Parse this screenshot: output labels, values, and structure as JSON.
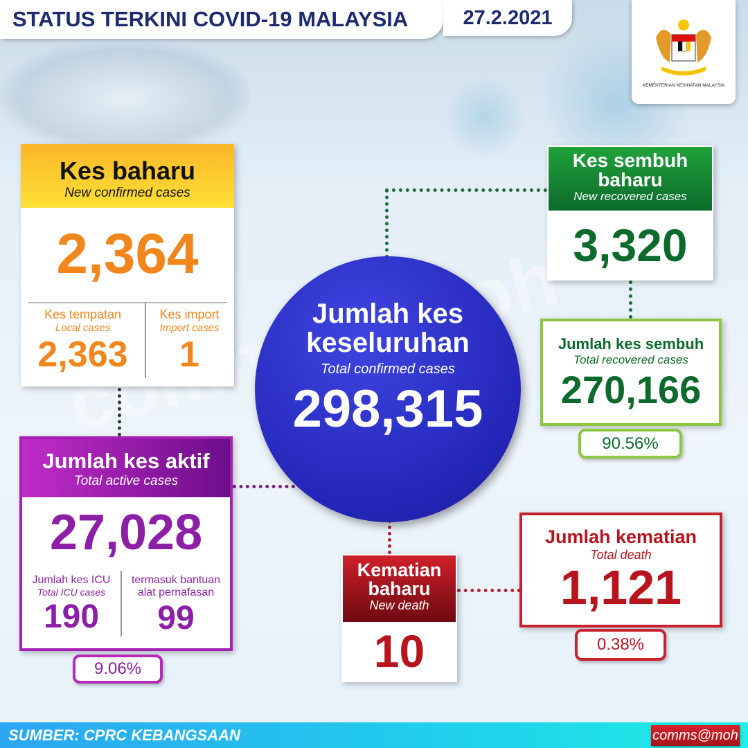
{
  "header": {
    "title": "STATUS TERKINI COVID-19 MALAYSIA",
    "date": "27.2.2021"
  },
  "logo": {
    "ministry": "KEMENTERIAN KESIHATAN MALAYSIA"
  },
  "new_cases": {
    "title": "Kes baharu",
    "subtitle": "New confirmed cases",
    "value": "2,364",
    "local_label": "Kes tempatan",
    "local_sub": "Local cases",
    "local_value": "2,363",
    "import_label": "Kes import",
    "import_sub": "Import cases",
    "import_value": "1"
  },
  "active": {
    "title": "Jumlah kes aktif",
    "subtitle": "Total active cases",
    "value": "27,028",
    "icu_label": "Jumlah kes ICU",
    "icu_sub": "Total ICU cases",
    "icu_value": "190",
    "vent_label1": "termasuk bantuan",
    "vent_label2": "alat pernafasan",
    "vent_value": "99",
    "percent": "9.06%"
  },
  "total": {
    "title1": "Jumlah kes",
    "title2": "keseluruhan",
    "subtitle": "Total confirmed cases",
    "value": "298,315"
  },
  "new_recovered": {
    "title1": "Kes sembuh",
    "title2": "baharu",
    "subtitle": "New recovered cases",
    "value": "3,320"
  },
  "total_recovered": {
    "title": "Jumlah kes sembuh",
    "subtitle": "Total recovered cases",
    "value": "270,166",
    "percent": "90.56%"
  },
  "new_death": {
    "title1": "Kematian",
    "title2": "baharu",
    "subtitle": "New death",
    "value": "10"
  },
  "total_death": {
    "title": "Jumlah kematian",
    "subtitle": "Total death",
    "value": "1,121",
    "percent": "0.38%"
  },
  "footer": {
    "source": "SUMBER: CPRC KEBANGSAAN",
    "brand": "comms@moh"
  },
  "watermark": "comms@moh",
  "colors": {
    "navy": "#1d2a6e",
    "orange": "#f0861c",
    "yellow": "#fcd02a",
    "purple": "#8c1fa6",
    "blue": "#2a2fc8",
    "green": "#0c6a2c",
    "lightgreen": "#8dc63f",
    "red": "#b8141e"
  }
}
